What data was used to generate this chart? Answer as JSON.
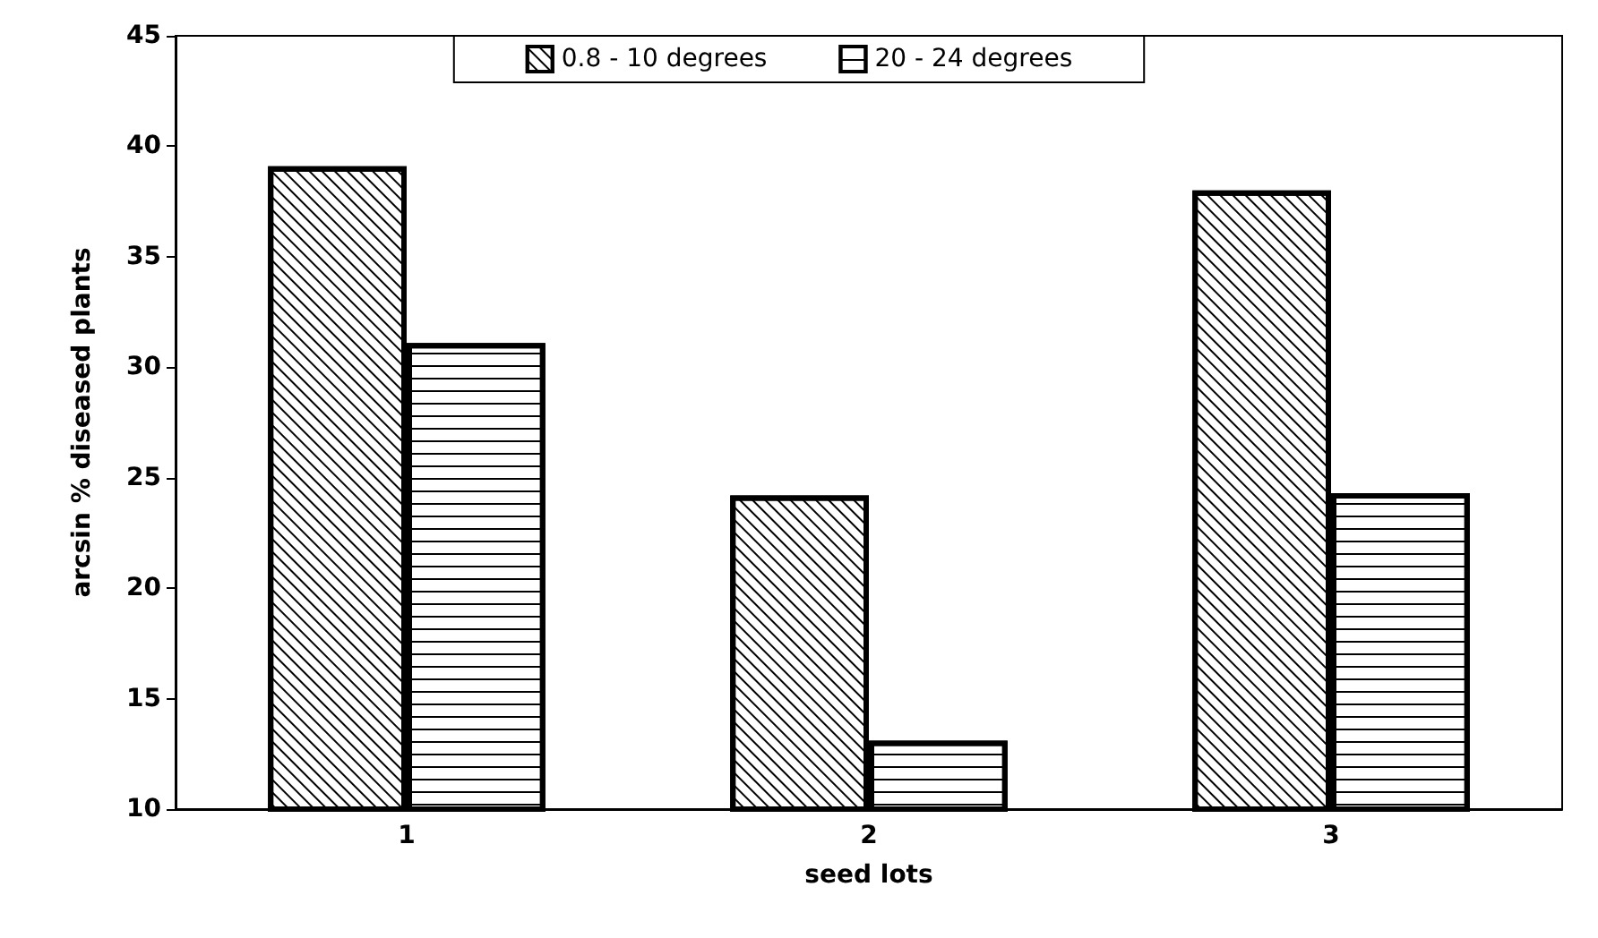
{
  "chart_data": {
    "type": "bar",
    "xlabel": "seed lots",
    "ylabel": "arcsin % diseased plants",
    "categories": [
      "1",
      "2",
      "3"
    ],
    "series": [
      {
        "name": "0.8 - 10 degrees",
        "color": "#ffffff",
        "values": [
          39.1,
          24.2,
          38.0
        ]
      },
      {
        "name": "20 - 24 degrees",
        "color": "#ffffff",
        "values": [
          31.1,
          13.1,
          24.3
        ]
      }
    ],
    "ylim": [
      10,
      45
    ],
    "yticks": [
      10,
      15,
      20,
      25,
      30,
      35,
      40,
      45
    ],
    "grid": false,
    "legend": "top"
  }
}
